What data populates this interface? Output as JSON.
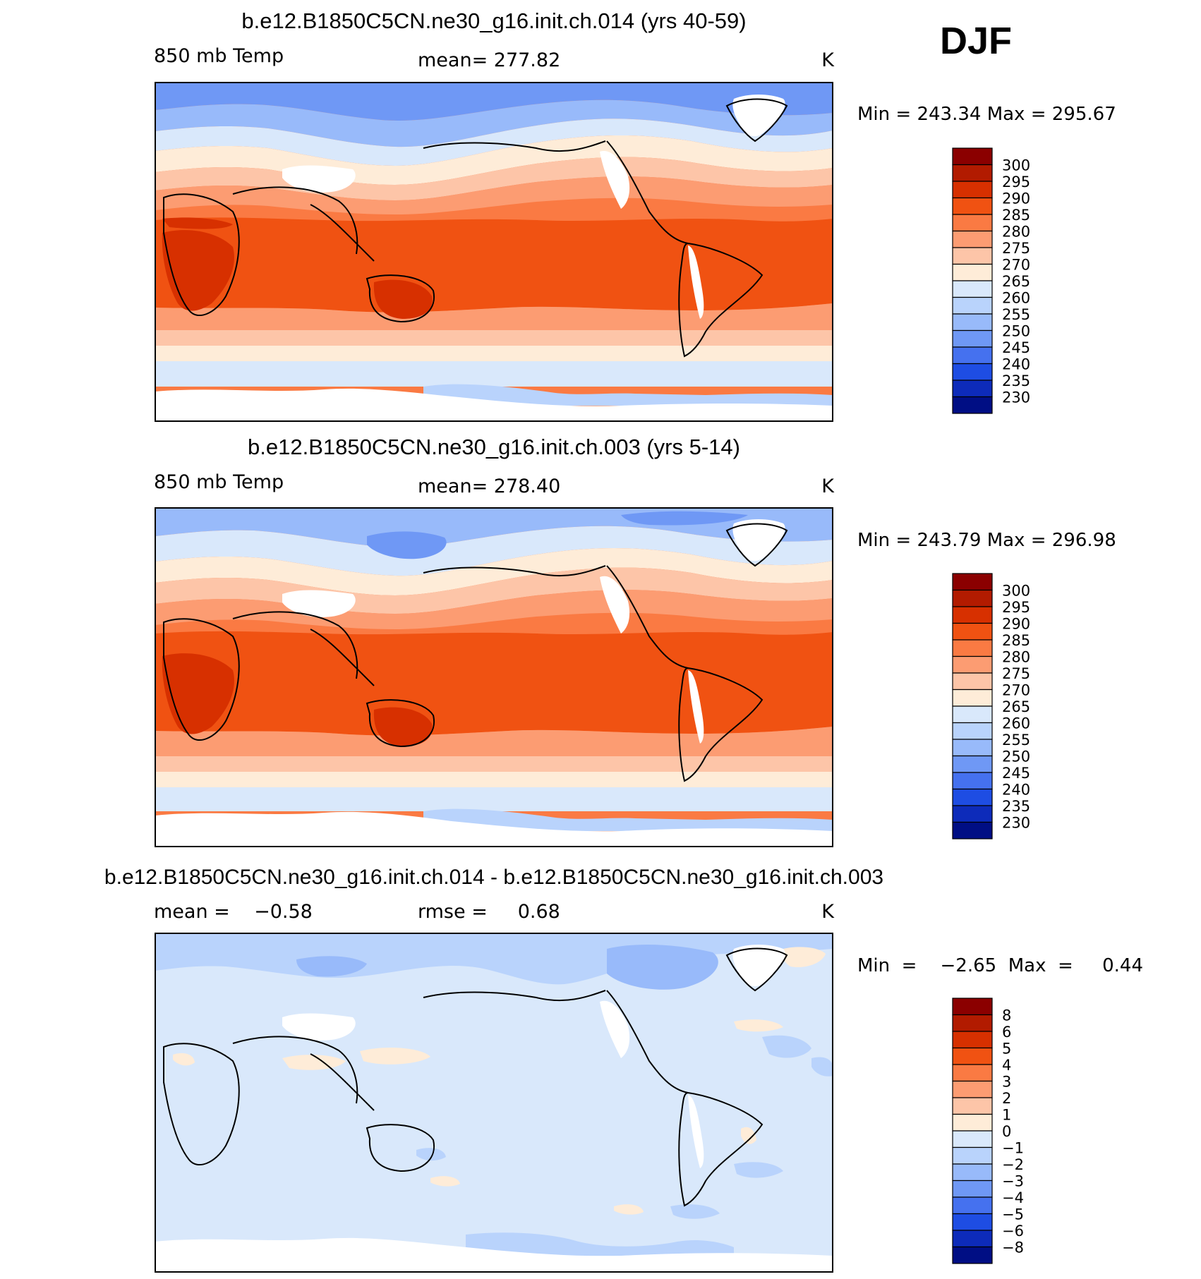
{
  "season": "DJF",
  "panels": [
    {
      "title": "b.e12.B1850C5CN.ne30_g16.init.ch.014 (yrs 40-59)",
      "left": "850 mb Temp",
      "center": "mean=  277.82",
      "units": "K",
      "minmax": "Min  =  243.34  Max  =  295.67",
      "scale": "abs"
    },
    {
      "title": "b.e12.B1850C5CN.ne30_g16.init.ch.003 (yrs 5-14)",
      "left": "850 mb Temp",
      "center": "mean=  278.40",
      "units": "K",
      "minmax": "Min  =  243.79  Max  =  296.98",
      "scale": "abs"
    },
    {
      "title": "b.e12.B1850C5CN.ne30_g16.init.ch.014 - b.e12.B1850C5CN.ne30_g16.init.ch.003",
      "left": "mean =    −0.58",
      "center": "rmse =     0.68",
      "units": "K",
      "minmax": "Min  =    −2.65  Max  =     0.44",
      "scale": "diff"
    }
  ],
  "colorbars": {
    "abs": {
      "labels": [
        "300",
        "295",
        "290",
        "285",
        "280",
        "275",
        "270",
        "265",
        "260",
        "255",
        "250",
        "245",
        "240",
        "235",
        "230"
      ],
      "colors": [
        "#8b0000",
        "#b21b00",
        "#d73000",
        "#f05212",
        "#fa7a43",
        "#fc9c72",
        "#fdc5a8",
        "#feecd8",
        "#d9e8fb",
        "#b9d3fc",
        "#98bafa",
        "#6f98f5",
        "#4571ef",
        "#1e4de3",
        "#0d2bba",
        "#000e84"
      ]
    },
    "diff": {
      "labels": [
        "8",
        "6",
        "5",
        "4",
        "3",
        "2",
        "1",
        "0",
        "−1",
        "−2",
        "−3",
        "−4",
        "−5",
        "−6",
        "−8"
      ],
      "colors": [
        "#8b0000",
        "#b21b00",
        "#d73000",
        "#f05212",
        "#fa7a43",
        "#fc9c72",
        "#fdc5a8",
        "#feecd8",
        "#d9e8fb",
        "#b9d3fc",
        "#98bafa",
        "#6f98f5",
        "#4571ef",
        "#1e4de3",
        "#0d2bba",
        "#000e84"
      ]
    }
  }
}
